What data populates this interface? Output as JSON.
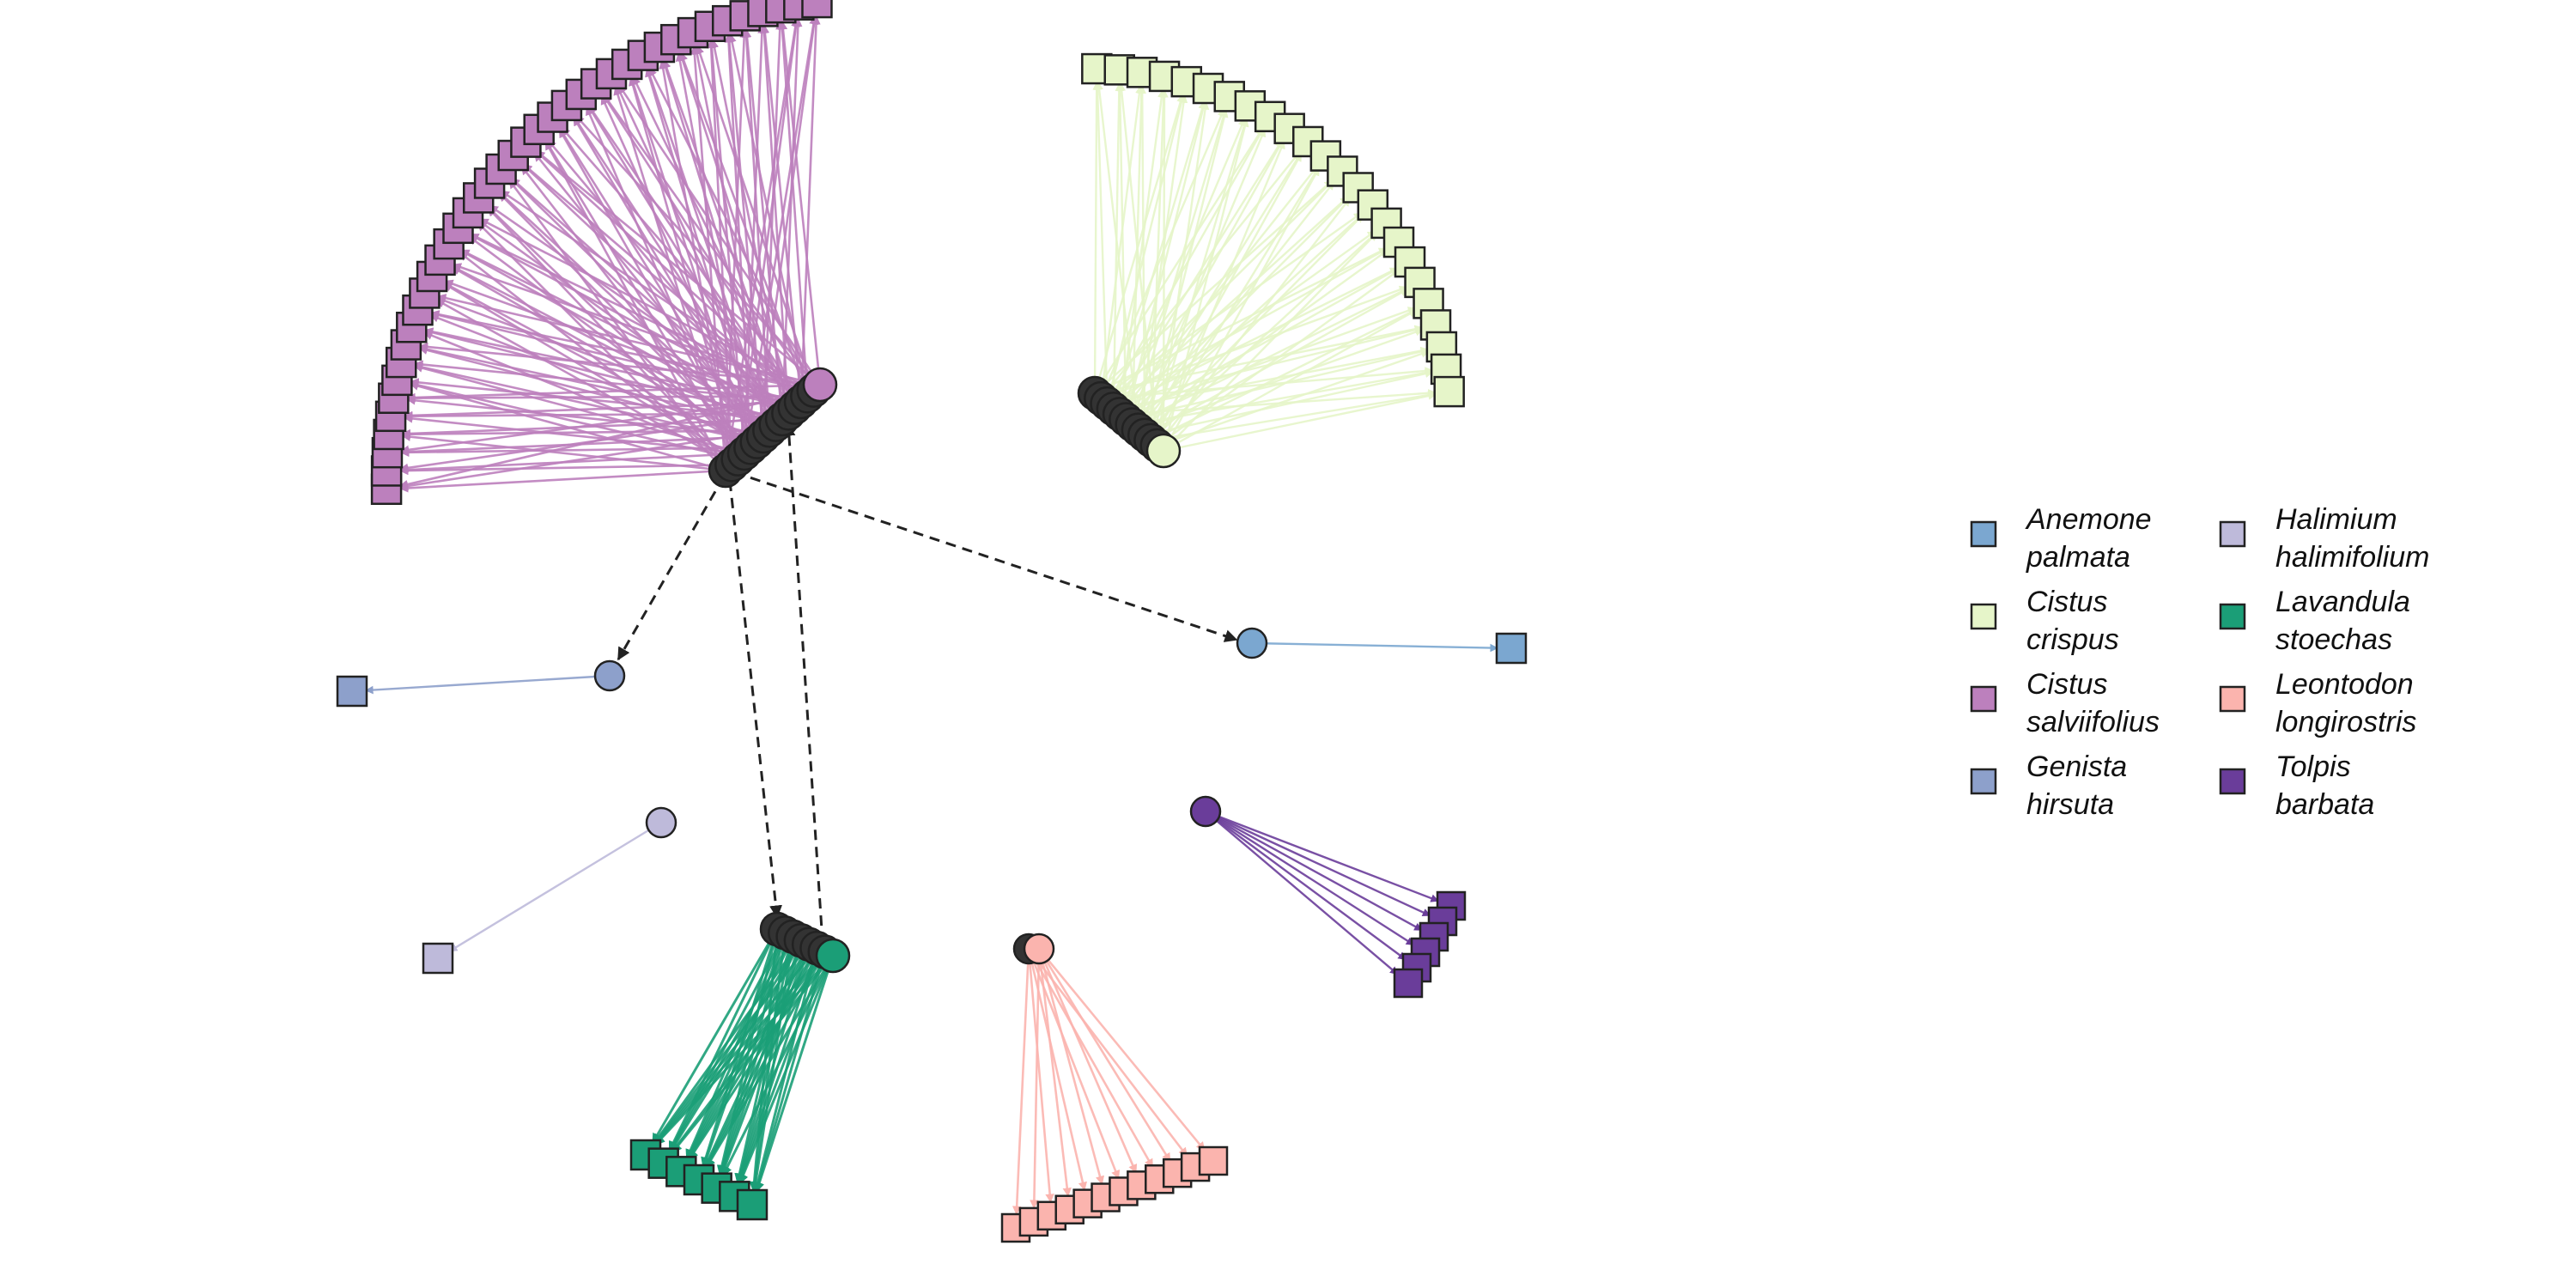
{
  "legend": {
    "items": [
      {
        "genus": "Anemone",
        "epithet": "palmata",
        "color": "#7BA7D0"
      },
      {
        "genus": "Cistus",
        "epithet": "crispus",
        "color": "#E6F5C9"
      },
      {
        "genus": "Cistus",
        "epithet": "salviifolius",
        "color": "#BC80BD"
      },
      {
        "genus": "Genista",
        "epithet": "hirsuta",
        "color": "#8DA0CB"
      },
      {
        "genus": "Halimium",
        "epithet": "halimifolium",
        "color": "#BEBADA"
      },
      {
        "genus": "Lavandula",
        "epithet": "stoechas",
        "color": "#1B9E77"
      },
      {
        "genus": "Leontodon",
        "epithet": "longirostris",
        "color": "#FBB4AE"
      },
      {
        "genus": "Tolpis",
        "epithet": "barbata",
        "color": "#6A3D9A"
      }
    ]
  },
  "network": {
    "hub_color": "#333333",
    "dashed_link_color": "#222222"
  }
}
